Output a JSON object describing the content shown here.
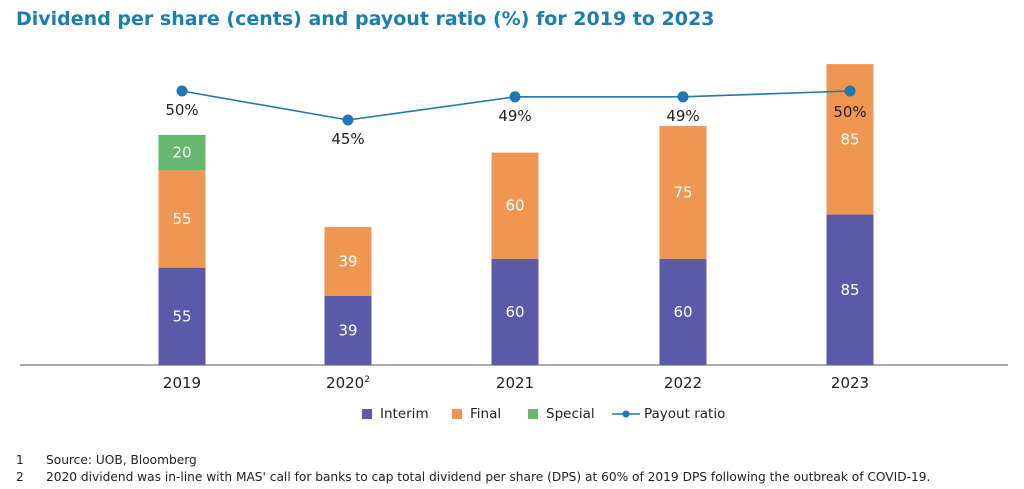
{
  "title": "Dividend per share (cents) and payout ratio (%) for 2019 to 2023",
  "chart_data": {
    "type": "bar",
    "stacked": true,
    "categories": [
      "2019",
      "2020",
      "2021",
      "2022",
      "2023"
    ],
    "category_superscripts": [
      "",
      "2",
      "",
      "",
      ""
    ],
    "series": [
      {
        "name": "Interim",
        "color": "#5b5aa8",
        "values": [
          55,
          39,
          60,
          60,
          85
        ]
      },
      {
        "name": "Final",
        "color": "#ef9652",
        "values": [
          55,
          39,
          60,
          75,
          85
        ]
      },
      {
        "name": "Special",
        "color": "#67b56e",
        "values": [
          20,
          0,
          0,
          0,
          0
        ]
      }
    ],
    "line_series": {
      "name": "Payout ratio",
      "color": "#1f77b4",
      "values": [
        50,
        45,
        49,
        49,
        50
      ],
      "labels": [
        "50%",
        "45%",
        "49%",
        "49%",
        "50%"
      ]
    },
    "ylim": [
      0,
      170
    ],
    "grid": false,
    "legend": "bottom"
  },
  "footnotes": [
    {
      "num": "1",
      "text": "Source: UOB, Bloomberg"
    },
    {
      "num": "2",
      "text": "2020 dividend was in-line with MAS' call for banks to cap total dividend per share (DPS) at 60% of 2019 DPS following the outbreak of COVID-19."
    }
  ]
}
